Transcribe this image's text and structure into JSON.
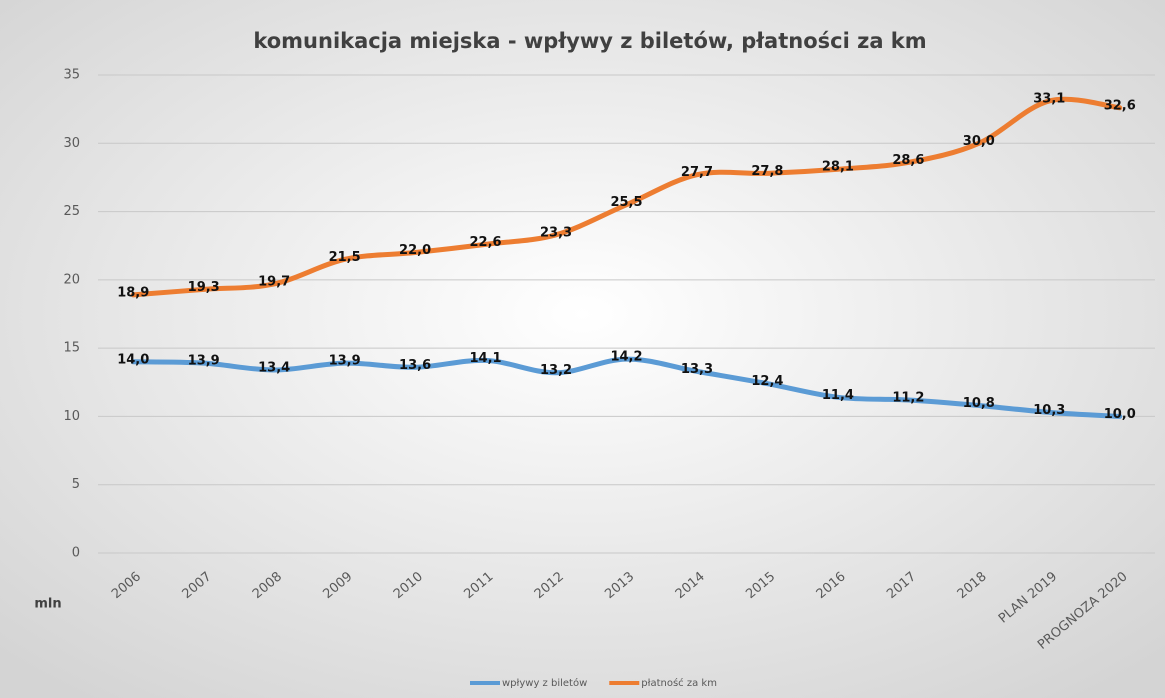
{
  "chart_data": {
    "type": "line",
    "title": "komunikacja miejska - wpływy z biletów, płatności za km",
    "y_label": "mln",
    "categories": [
      "2006",
      "2007",
      "2008",
      "2009",
      "2010",
      "2011",
      "2012",
      "2013",
      "2014",
      "2015",
      "2016",
      "2017",
      "2018",
      "PLAN 2019",
      "PROGNOZA 2020"
    ],
    "series": [
      {
        "name": "wpływy z biletów",
        "color": "#5b9bd5",
        "values": [
          14.0,
          13.9,
          13.4,
          13.9,
          13.6,
          14.1,
          13.2,
          14.2,
          13.3,
          12.4,
          11.4,
          11.2,
          10.8,
          10.3,
          10.0
        ],
        "value_labels": [
          "14,0",
          "13,9",
          "13,4",
          "13,9",
          "13,6",
          "14,1",
          "13,2",
          "14,2",
          "13,3",
          "12,4",
          "11,4",
          "11,2",
          "10,8",
          "10,3",
          "10,0"
        ]
      },
      {
        "name": "płatność za km",
        "color": "#ed7d31",
        "values": [
          18.9,
          19.3,
          19.7,
          21.5,
          22.0,
          22.6,
          23.3,
          25.5,
          27.7,
          27.8,
          28.1,
          28.6,
          30.0,
          33.1,
          32.6
        ],
        "value_labels": [
          "18,9",
          "19,3",
          "19,7",
          "21,5",
          "22,0",
          "22,6",
          "23,3",
          "25,5",
          "27,7",
          "27,8",
          "28,1",
          "28,6",
          "30,0",
          "33,1",
          "32,6"
        ]
      }
    ],
    "ylim": [
      0,
      35
    ],
    "yticks": [
      0,
      5,
      10,
      15,
      20,
      25,
      30,
      35
    ],
    "grid": true,
    "legend": "bottom",
    "smooth": true
  }
}
